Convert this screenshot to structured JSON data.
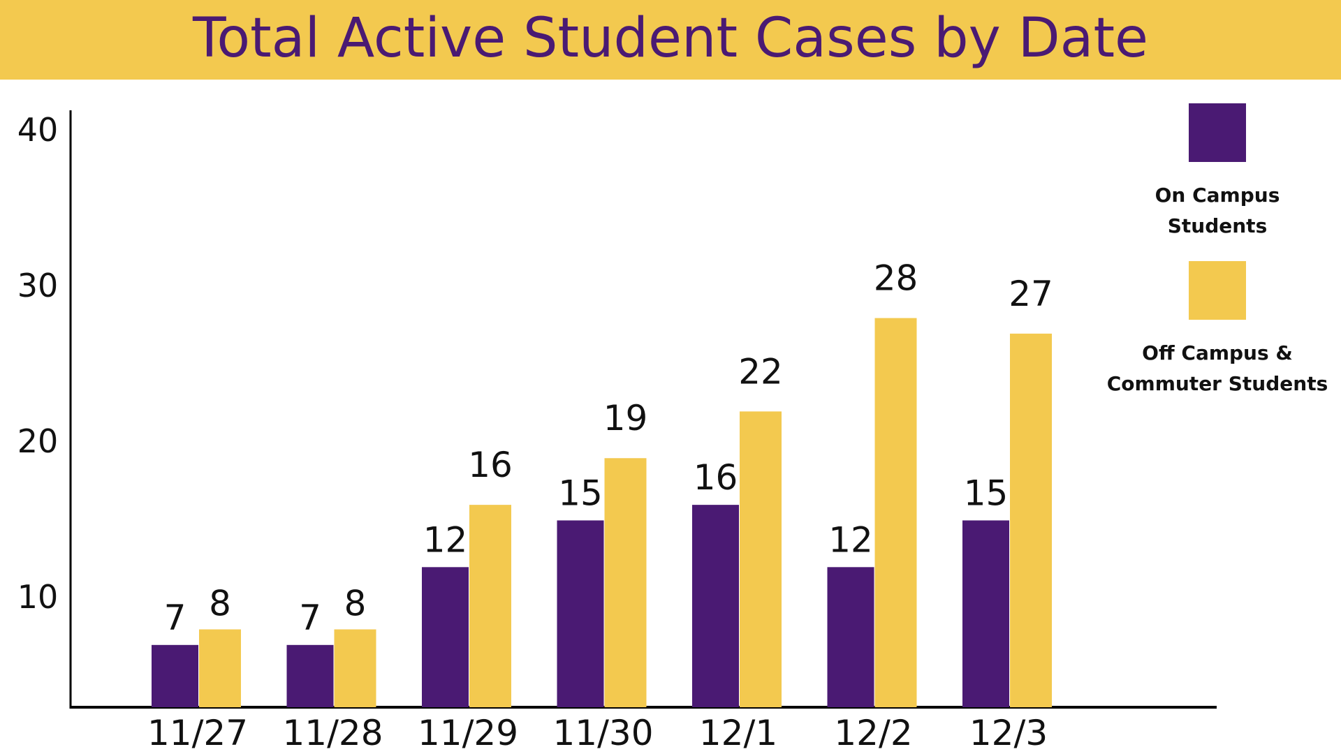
{
  "colors": {
    "banner": "#F3C94F",
    "title": "#4A1A73",
    "on_campus": "#4A1A73",
    "off_campus": "#F3C94F",
    "axis": "#000000",
    "text": "#111111"
  },
  "chart_data": {
    "type": "bar",
    "title": "Total Active Student Cases by Date",
    "xlabel": "",
    "ylabel": "",
    "ylim": [
      3,
      40
    ],
    "yticks": [
      10,
      20,
      30,
      40
    ],
    "grid": false,
    "legend_position": "right",
    "categories": [
      "11/27",
      "11/28",
      "11/29",
      "11/30",
      "12/1",
      "12/2",
      "12/3"
    ],
    "series": [
      {
        "name_lines": [
          "On Campus",
          "Students"
        ],
        "color": "#4A1A73",
        "values": [
          7,
          7,
          12,
          15,
          16,
          12,
          15
        ],
        "labels": [
          "7",
          "7",
          "12",
          "15",
          "16",
          "12",
          "15"
        ]
      },
      {
        "name_lines": [
          "Off Campus &",
          "Commuter Students"
        ],
        "color": "#F3C94F",
        "values": [
          8,
          8,
          16,
          19,
          22,
          28,
          27
        ],
        "labels": [
          "8",
          "8",
          "16",
          "19",
          "22",
          "28",
          "27"
        ]
      }
    ]
  }
}
